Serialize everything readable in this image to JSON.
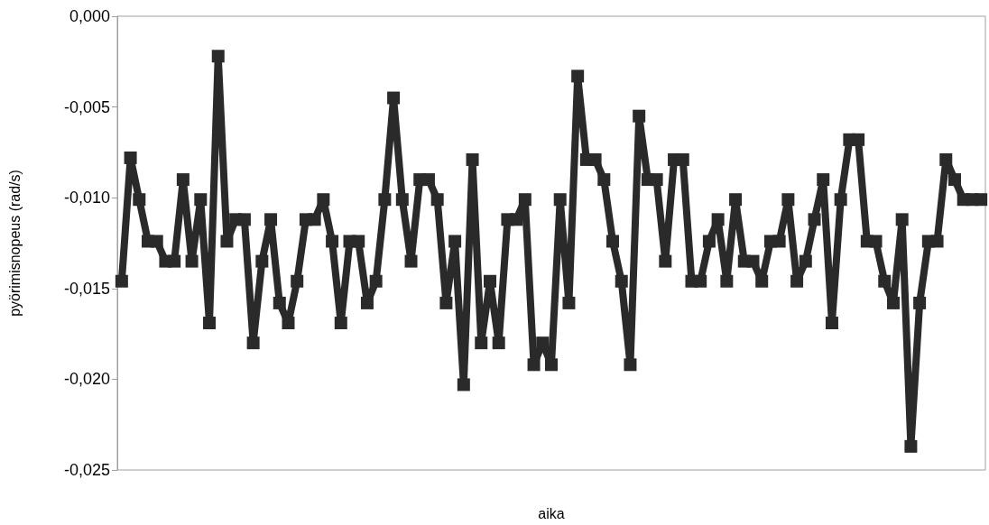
{
  "chart_data": {
    "type": "line",
    "xlabel": "aika",
    "ylabel": "pyörimisnopeus (rad/s)",
    "categories": [
      null,
      null,
      null,
      null,
      null,
      null,
      null,
      null,
      null,
      null,
      null,
      null,
      null,
      null,
      null,
      null,
      null,
      null,
      null,
      null,
      null,
      null,
      null,
      null,
      null,
      null,
      null,
      null,
      null,
      null,
      null,
      null,
      null,
      null,
      null,
      null,
      null,
      null,
      null,
      null,
      null,
      null,
      null,
      null,
      null,
      null,
      null,
      null,
      null,
      null,
      null,
      null,
      null,
      null,
      null,
      null,
      null,
      null,
      null,
      null,
      null,
      null,
      null,
      null,
      null,
      null,
      null,
      null,
      null,
      null,
      null,
      null,
      null,
      null,
      null,
      null,
      null,
      null,
      null,
      null,
      null,
      null,
      null,
      null,
      null,
      null,
      null,
      null,
      null,
      null,
      null,
      null,
      null,
      null,
      null,
      null,
      null,
      null,
      null
    ],
    "series": [
      {
        "color": "#2a2a2a",
        "values": [
          -0.0146,
          -0.0078,
          -0.0101,
          -0.0124,
          -0.0124,
          -0.0135,
          -0.0135,
          -0.009,
          -0.0135,
          -0.0101,
          -0.0169,
          -0.0022,
          -0.0124,
          -0.0112,
          -0.0112,
          -0.018,
          -0.0135,
          -0.0112,
          -0.0158,
          -0.0169,
          -0.0146,
          -0.0112,
          -0.0112,
          -0.0101,
          -0.0124,
          -0.0169,
          -0.0124,
          -0.0124,
          -0.0158,
          -0.0146,
          -0.0101,
          -0.0045,
          -0.0101,
          -0.0135,
          -0.009,
          -0.009,
          -0.0101,
          -0.0158,
          -0.0124,
          -0.0203,
          -0.0079,
          -0.018,
          -0.0146,
          -0.018,
          -0.0112,
          -0.0112,
          -0.0101,
          -0.0192,
          -0.018,
          -0.0192,
          -0.0101,
          -0.0158,
          -0.0033,
          -0.0079,
          -0.0079,
          -0.009,
          -0.0124,
          -0.0146,
          -0.0192,
          -0.0055,
          -0.009,
          -0.009,
          -0.0135,
          -0.0079,
          -0.0079,
          -0.0146,
          -0.0146,
          -0.0124,
          -0.0112,
          -0.0146,
          -0.0101,
          -0.0135,
          -0.0135,
          -0.0146,
          -0.0124,
          -0.0124,
          -0.0101,
          -0.0146,
          -0.0135,
          -0.0112,
          -0.009,
          -0.0169,
          -0.0101,
          -0.0068,
          -0.0068,
          -0.0124,
          -0.0124,
          -0.0146,
          -0.0158,
          -0.0112,
          -0.0237,
          -0.0158,
          -0.0124,
          -0.0124,
          -0.0079,
          -0.009,
          -0.0101,
          -0.0101,
          -0.0101
        ]
      }
    ],
    "ylim": [
      -0.025,
      0
    ],
    "yticks": [
      {
        "value": -0.025,
        "label": "-0,025"
      },
      {
        "value": -0.02,
        "label": "-0,020"
      },
      {
        "value": -0.015,
        "label": "-0,015"
      },
      {
        "value": -0.01,
        "label": "-0,010"
      },
      {
        "value": -0.005,
        "label": "-0,005"
      },
      {
        "value": 0,
        "label": "0,000"
      }
    ],
    "tick_labels": "y",
    "grid": false,
    "marker": "square",
    "line_style": "solid"
  }
}
